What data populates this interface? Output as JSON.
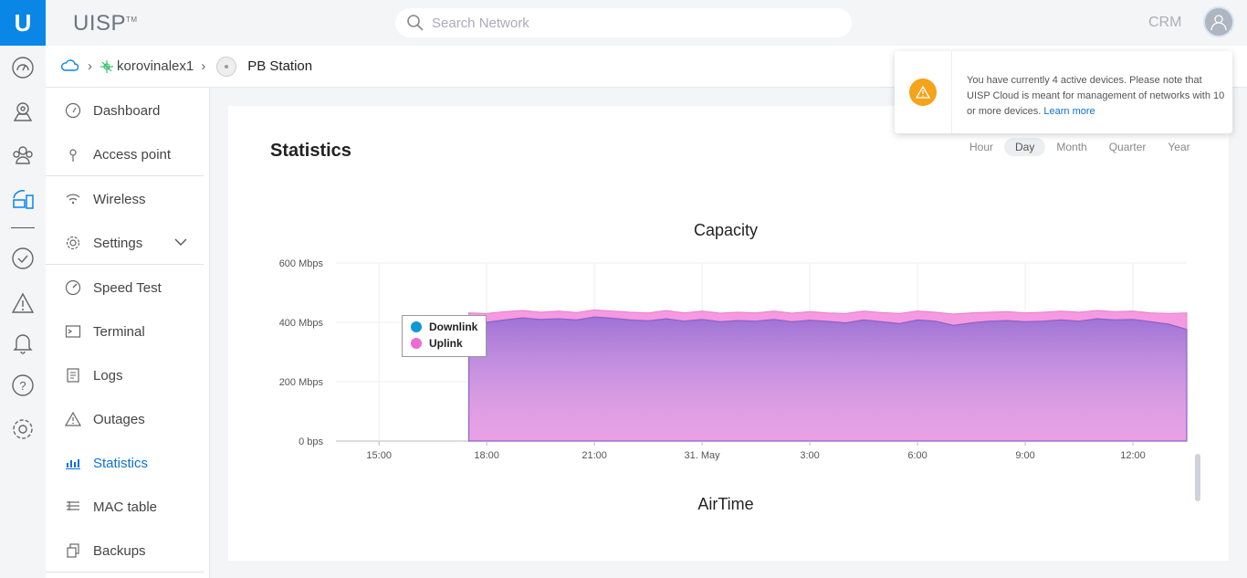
{
  "app": {
    "brand": "UISP",
    "brand_tm": "TM",
    "crm": "CRM"
  },
  "search": {
    "placeholder": "Search Network"
  },
  "rail_icons": [
    "dashboard-icon",
    "sites-icon",
    "clients-icon",
    "devices-icon",
    "tasks-icon",
    "alerts-icon",
    "notifications-icon",
    "help-icon",
    "settings-icon"
  ],
  "breadcrumb": {
    "site": "korovinalex1",
    "device": "PB Station"
  },
  "sidebar": {
    "items": [
      {
        "label": "Dashboard",
        "icon": "dashboard-icon"
      },
      {
        "label": "Access point",
        "icon": "antenna-icon"
      },
      {
        "label": "Wireless",
        "icon": "wifi-icon"
      },
      {
        "label": "Settings",
        "icon": "gear-icon"
      },
      {
        "label": "Speed Test",
        "icon": "speedometer-icon"
      },
      {
        "label": "Terminal",
        "icon": "terminal-icon"
      },
      {
        "label": "Logs",
        "icon": "logs-icon"
      },
      {
        "label": "Outages",
        "icon": "warning-icon"
      },
      {
        "label": "Statistics",
        "icon": "bar-chart-icon"
      },
      {
        "label": "MAC table",
        "icon": "table-icon"
      },
      {
        "label": "Backups",
        "icon": "backup-icon"
      }
    ],
    "active": "Statistics"
  },
  "statistics": {
    "title": "Statistics",
    "periods": [
      "Hour",
      "Day",
      "Month",
      "Quarter",
      "Year"
    ],
    "selected_period": "Day"
  },
  "toast": {
    "message": "You have currently 4 active devices. Please note that UISP Cloud is meant for management of networks with 10 or more devices.",
    "link": "Learn more"
  },
  "airtime": {
    "title": "AirTime"
  },
  "colors": {
    "accent": "#0a86e6",
    "downlink": "#0b97d8",
    "uplink": "#f06ad0",
    "warning": "#f4a31a"
  },
  "chart_data": {
    "type": "area",
    "title": "Capacity",
    "y_ticks": [
      "600 Mbps",
      "400 Mbps",
      "200 Mbps",
      "0 bps"
    ],
    "ylim": [
      0,
      600
    ],
    "x_ticks": [
      "15:00",
      "18:00",
      "21:00",
      "31. May",
      "3:00",
      "6:00",
      "9:00",
      "12:00"
    ],
    "x_tick_hours": [
      15,
      18,
      21,
      24,
      27,
      30,
      33,
      36
    ],
    "xlim_hours": [
      13.8,
      37.5
    ],
    "legend": [
      "Downlink",
      "Uplink"
    ],
    "series": [
      {
        "name": "Downlink",
        "x_hours": [
          17.5,
          18,
          18.5,
          19,
          19.5,
          20,
          20.5,
          21,
          21.5,
          22,
          22.5,
          23,
          23.5,
          24,
          24.5,
          25,
          25.5,
          26,
          26.5,
          27,
          27.5,
          28,
          28.5,
          29,
          29.5,
          30,
          30.5,
          31,
          31.5,
          32,
          32.5,
          33,
          33.5,
          34,
          34.5,
          35,
          35.5,
          36,
          36.5,
          37,
          37.5
        ],
        "values": [
          405,
          400,
          408,
          415,
          410,
          412,
          408,
          418,
          414,
          408,
          405,
          412,
          404,
          410,
          402,
          406,
          404,
          410,
          402,
          407,
          403,
          398,
          408,
          402,
          396,
          408,
          404,
          390,
          398,
          404,
          406,
          402,
          404,
          408,
          404,
          412,
          408,
          410,
          402,
          394,
          376
        ]
      },
      {
        "name": "Uplink",
        "x_hours": [
          17.5,
          18,
          18.5,
          19,
          19.5,
          20,
          20.5,
          21,
          21.5,
          22,
          22.5,
          23,
          23.5,
          24,
          24.5,
          25,
          25.5,
          26,
          26.5,
          27,
          27.5,
          28,
          28.5,
          29,
          29.5,
          30,
          30.5,
          31,
          31.5,
          32,
          32.5,
          33,
          33.5,
          34,
          34.5,
          35,
          35.5,
          36,
          36.5,
          37,
          37.5
        ],
        "values": [
          432,
          430,
          436,
          440,
          434,
          438,
          433,
          442,
          438,
          434,
          432,
          440,
          432,
          438,
          431,
          434,
          432,
          438,
          431,
          436,
          432,
          430,
          438,
          433,
          430,
          438,
          434,
          428,
          432,
          434,
          436,
          432,
          434,
          438,
          434,
          440,
          436,
          438,
          432,
          430,
          432
        ]
      }
    ]
  }
}
